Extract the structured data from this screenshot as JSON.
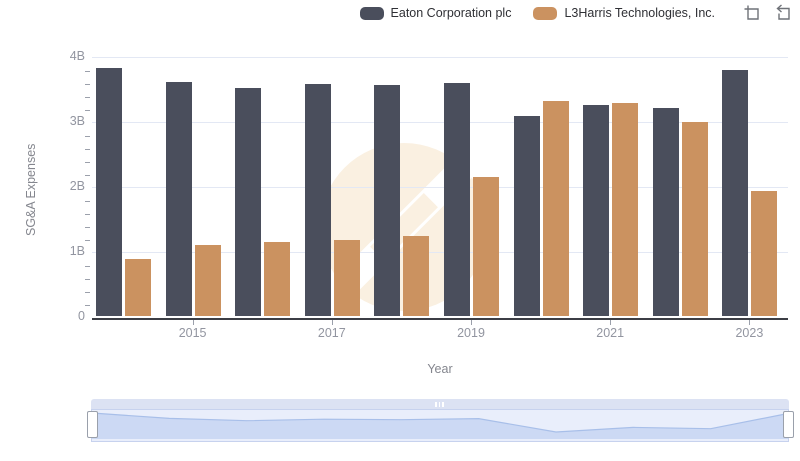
{
  "legend": {
    "items": [
      {
        "label": "Eaton Corporation plc",
        "color": "#4a4e5c"
      },
      {
        "label": "L3Harris Technologies, Inc.",
        "color": "#cb9260"
      }
    ]
  },
  "toolbar": {
    "icons": [
      "zoom-selection-icon",
      "reset-zoom-icon"
    ],
    "icon_color": "#6f7278"
  },
  "chart_data": {
    "type": "bar",
    "title": "",
    "xlabel": "Year",
    "ylabel": "SG&A Expenses",
    "unit": "B",
    "categories": [
      2014,
      2015,
      2016,
      2017,
      2018,
      2019,
      2020,
      2021,
      2022,
      2023
    ],
    "series": [
      {
        "name": "Eaton Corporation plc",
        "color": "#4a4e5c",
        "values": [
          3.81,
          3.6,
          3.51,
          3.57,
          3.55,
          3.59,
          3.07,
          3.25,
          3.2,
          3.79
        ]
      },
      {
        "name": "L3Harris Technologies, Inc.",
        "color": "#cb9260",
        "values": [
          0.87,
          1.1,
          1.14,
          1.17,
          1.23,
          2.14,
          3.31,
          3.27,
          2.99,
          1.92
        ]
      }
    ],
    "ylim": [
      0,
      4
    ],
    "y_tick_labels": [
      "0",
      "1B",
      "2B",
      "3B",
      "4B"
    ],
    "y_minor_tick_step": 0.2,
    "x_tick_labels": [
      "2015",
      "2017",
      "2019",
      "2021",
      "2023"
    ],
    "grid": true,
    "legend_position": "top-right",
    "colors": {
      "gridline": "#e3e8f4",
      "axis_line": "#3c3e45",
      "tick_label": "#9295a0",
      "axis_title": "#84868e",
      "watermark": "#faf0e1"
    }
  },
  "navigator": {
    "source_series": "Eaton Corporation plc",
    "area_fill": "#ccd9f4",
    "area_line": "#a8bfe9",
    "range": "full"
  }
}
